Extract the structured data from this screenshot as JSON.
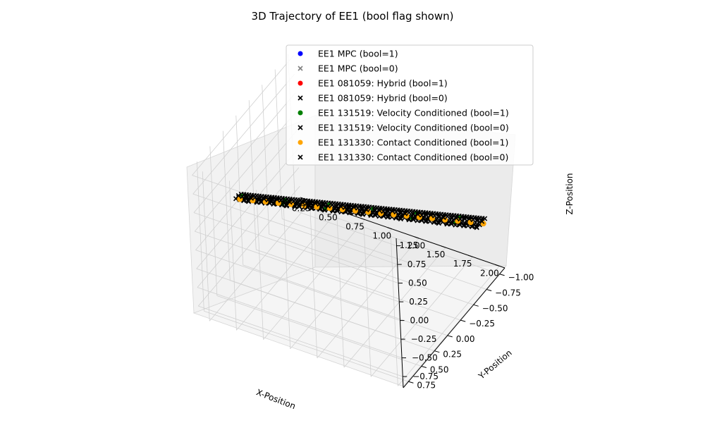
{
  "chart_data": {
    "type": "scatter",
    "projection": "3d",
    "title": "3D Trajectory of EE1 (bool flag shown)",
    "xlabel": "X-Position",
    "ylabel": "Y-Position",
    "zlabel": "Z-Position",
    "xlim": [
      0.15,
      2.05
    ],
    "ylim": [
      -1.1,
      0.85
    ],
    "zlim": [
      -0.9,
      1.1
    ],
    "x_ticks": [
      "0.25",
      "0.50",
      "0.75",
      "1.00",
      "1.25",
      "1.50",
      "1.75",
      "2.00"
    ],
    "y_ticks": [
      "−1.00",
      "−0.75",
      "−0.50",
      "−0.25",
      "0.00",
      "0.25",
      "0.50",
      "0.75"
    ],
    "z_ticks": [
      "−0.75",
      "−0.50",
      "−0.25",
      "0.00",
      "0.25",
      "0.50",
      "0.75",
      "1.00"
    ],
    "grid": true,
    "legend_position": "upper-right",
    "series": [
      {
        "name": "EE1 MPC (bool=1)",
        "marker": "o",
        "color": "#0000ff"
      },
      {
        "name": "EE1 MPC (bool=0)",
        "marker": "x",
        "color": "#808080"
      },
      {
        "name": "EE1 081059: Hybrid (bool=1)",
        "marker": "o",
        "color": "#ff0000"
      },
      {
        "name": "EE1 081059: Hybrid (bool=0)",
        "marker": "x",
        "color": "#000000"
      },
      {
        "name": "EE1 131519: Velocity Conditioned (bool=1)",
        "marker": "o",
        "color": "#008000"
      },
      {
        "name": "EE1 131519: Velocity Conditioned (bool=0)",
        "marker": "x",
        "color": "#000000"
      },
      {
        "name": "EE1 131330: Contact Conditioned (bool=1)",
        "marker": "o",
        "color": "#ffa500"
      },
      {
        "name": "EE1 131330: Contact Conditioned (bool=0)",
        "marker": "x",
        "color": "#000000"
      }
    ],
    "trajectory_bands": [
      {
        "z": 0.0,
        "x_start": 0.15,
        "x_end": 2.05,
        "y_start": 0.05,
        "y_end": -0.65
      },
      {
        "z": 0.0,
        "x_start": 0.15,
        "x_end": 2.05,
        "y_start": 0.0,
        "y_end": -0.75
      }
    ]
  }
}
